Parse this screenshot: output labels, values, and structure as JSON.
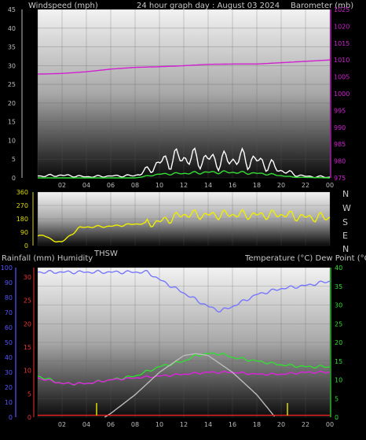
{
  "header": {
    "left": "Windspeed (mph)",
    "center": "24 hour graph day : August 03 2024",
    "right": "Barometer (mb)"
  },
  "mid": {
    "thsw": "THSW",
    "dir_labels": [
      "N",
      "W",
      "S",
      "E",
      "N"
    ]
  },
  "bottom_labels": {
    "rain_hum": "Rainfall (mm)  Humidity",
    "temp_dew": "Temperature (°C) Dew Point (°C)"
  },
  "chart_data": [
    {
      "type": "line",
      "x_ticks": [
        "02",
        "04",
        "06",
        "08",
        "10",
        "12",
        "14",
        "16",
        "18",
        "20",
        "22",
        "00"
      ],
      "y_left": {
        "ticks": [
          0,
          5,
          10,
          15,
          20,
          25,
          30,
          35,
          40,
          45
        ],
        "ylim": [
          0,
          45
        ],
        "color": "#bbbbbb"
      },
      "y_right": {
        "ticks": [
          975,
          980,
          985,
          990,
          995,
          1000,
          1005,
          1010,
          1015,
          1020,
          1025
        ],
        "ylim": [
          975,
          1025
        ],
        "color": "#d020d0"
      },
      "series": [
        {
          "color": "#d020d0",
          "axis": "right",
          "x": [
            0,
            2,
            4,
            6,
            8,
            10,
            12,
            14,
            16,
            18,
            20,
            22,
            24
          ],
          "values": [
            1005.8,
            1006.0,
            1006.5,
            1007.3,
            1007.8,
            1008.0,
            1008.3,
            1008.7,
            1008.8,
            1008.8,
            1009.2,
            1009.6,
            1010.0
          ]
        },
        {
          "color": "#ffffff",
          "axis": "left",
          "x": [
            0,
            2,
            4,
            6,
            8,
            9,
            10,
            11,
            12,
            13,
            14,
            15,
            16,
            17,
            18,
            19,
            20,
            21,
            22,
            24
          ],
          "values": [
            0.5,
            0.7,
            0.3,
            0.5,
            0.6,
            2,
            4,
            5,
            5.5,
            5,
            5,
            4.5,
            5,
            5,
            4.5,
            3.5,
            2,
            1,
            0.4,
            0.2
          ]
        },
        {
          "color": "#33dd33",
          "axis": "left",
          "x": [
            0,
            8,
            9,
            10,
            12,
            14,
            16,
            18,
            19,
            20,
            21,
            24
          ],
          "values": [
            0,
            0,
            0.5,
            1,
            1.2,
            1.5,
            1.5,
            1.2,
            1,
            0.6,
            0.2,
            0
          ]
        }
      ]
    },
    {
      "type": "line",
      "y_left": {
        "ticks": [
          0,
          90,
          180,
          270,
          360
        ],
        "ylim": [
          0,
          360
        ],
        "color": "#dddd00"
      },
      "series": [
        {
          "color": "#eeee00",
          "x": [
            0,
            0.5,
            1,
            1.5,
            2,
            2.5,
            3.4,
            4,
            6,
            8,
            9,
            10,
            12,
            14,
            16,
            18,
            20,
            22,
            24
          ],
          "values": [
            65,
            75,
            40,
            30,
            25,
            55,
            120,
            125,
            130,
            145,
            150,
            160,
            210,
            205,
            210,
            205,
            210,
            190,
            190
          ]
        }
      ]
    },
    {
      "type": "line",
      "x_ticks": [
        "02",
        "04",
        "06",
        "08",
        "10",
        "12",
        "14",
        "16",
        "18",
        "20",
        "22",
        "00"
      ],
      "y_left_outer": {
        "ticks": [
          0,
          10,
          20,
          30,
          40,
          50,
          60,
          70,
          80,
          90,
          100
        ],
        "ylim": [
          0,
          100
        ],
        "color": "#5555ff"
      },
      "y_left_inner": {
        "ticks": [
          0,
          5,
          10,
          15,
          20,
          25,
          30
        ],
        "ylim": [
          0,
          32
        ],
        "color": "#ee3333"
      },
      "y_right": {
        "ticks": [
          0,
          5,
          10,
          15,
          20,
          25,
          30,
          35,
          40
        ],
        "ylim": [
          0,
          40
        ],
        "color": "#33dd33"
      },
      "series": [
        {
          "color": "#7777ff",
          "axis": "outer",
          "x": [
            0,
            2,
            4,
            6,
            8,
            9,
            10,
            12,
            14,
            15,
            16,
            18,
            20,
            22,
            24
          ],
          "values": [
            97,
            97,
            97,
            97,
            97,
            97,
            92,
            83,
            74,
            71,
            74,
            82,
            86,
            88,
            91
          ]
        },
        {
          "color": "#33dd33",
          "axis": "right",
          "x": [
            0,
            2,
            4,
            6,
            8,
            10,
            12,
            13,
            14,
            15,
            16,
            18,
            20,
            22,
            24
          ],
          "values": [
            11,
            9,
            9,
            10,
            11,
            13.5,
            15,
            16.5,
            17,
            17,
            16,
            15,
            14,
            13.5,
            13.5
          ]
        },
        {
          "color": "#dd22dd",
          "axis": "right",
          "x": [
            0,
            2,
            4,
            6,
            8,
            10,
            12,
            14,
            16,
            18,
            20,
            22,
            24
          ],
          "values": [
            10.5,
            9,
            9,
            10,
            10.5,
            11,
            11.5,
            12,
            12,
            11.5,
            11.5,
            12,
            12
          ]
        },
        {
          "color": "#bbbbbb",
          "axis": "right",
          "x": [
            5.5,
            6,
            8,
            10,
            12,
            13,
            14,
            16,
            18,
            19.5
          ],
          "values": [
            0,
            1,
            6,
            12,
            16.5,
            17,
            16.5,
            12,
            6,
            0
          ]
        },
        {
          "color": "#ee2222",
          "axis": "inner",
          "x": [
            0,
            24
          ],
          "values": [
            0.4,
            0.4
          ]
        }
      ]
    }
  ]
}
